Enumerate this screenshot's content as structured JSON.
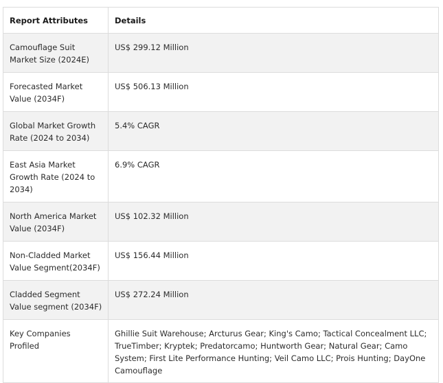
{
  "table": {
    "headers": [
      "Report Attributes",
      "Details"
    ],
    "rows": [
      [
        "Camouflage Suit Market Size (2024E)",
        "US$ 299.12 Million"
      ],
      [
        "Forecasted Market Value (2034F)",
        "US$ 506.13 Million"
      ],
      [
        "Global Market Growth Rate (2024 to 2034)",
        "5.4% CAGR"
      ],
      [
        "East Asia Market Growth Rate (2024 to 2034)",
        "6.9% CAGR"
      ],
      [
        "North America Market Value (2034F)",
        "US$ 102.32 Million"
      ],
      [
        "Non-Cladded Market Value Segment(2034F)",
        "US$ 156.44 Million"
      ],
      [
        "Cladded Segment Value segment (2034F)",
        "US$ 272.24 Million"
      ],
      [
        "Key Companies Profiled",
        "Ghillie Suit Warehouse; Arcturus Gear; King's Camo; Tactical Concealment LLC; TrueTimber; Kryptek; Predatorcamo; Huntworth Gear; Natural Gear; Camo System; First Lite Performance Hunting; Veil Camo LLC; Prois Hunting; DayOne Camouflage"
      ]
    ]
  },
  "colors": {
    "border": "#dcdcdc",
    "shaded_row": "#f2f2f2",
    "background": "#ffffff",
    "text": "#2b2b2b"
  }
}
